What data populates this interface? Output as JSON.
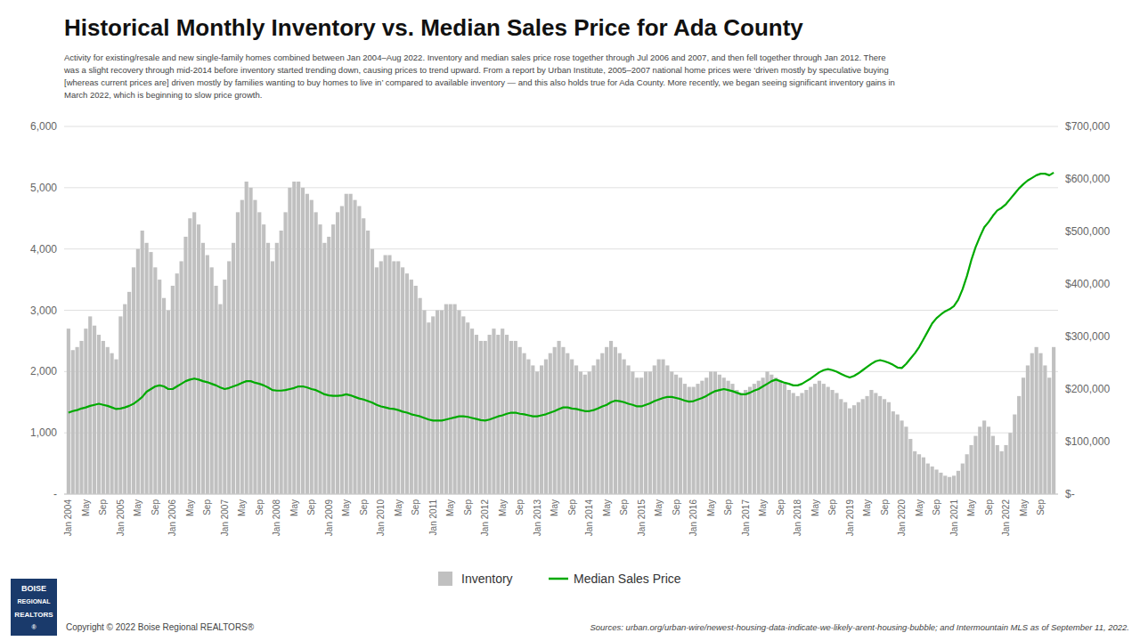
{
  "chart_data": {
    "type": "bar",
    "title": "Historical Monthly Inventory vs. Median Sales Price for Ada County",
    "subtitle": [
      "Activity for existing/resale and new single-family homes combined between Jan 2004–Aug 2022. Inventory and median sales price rose together through Jul 2006 and 2007, and then fell together through Jan 2012. There",
      "was a slight recovery through mid-2014 before inventory started trending down, causing prices to trend upward. From a report by Urban Institute, 2005–2007 national home prices were ‘driven mostly by speculative buying",
      "[whereas current prices are] driven mostly by families wanting to buy homes to live in’ compared to available inventory — and this also holds true for Ada County. More recently, we began seeing significant inventory gains in",
      "March 2022, which is beginning to slow price growth."
    ],
    "footer": [
      "Copyright © 2022 Boise Regional REALTORS®",
      "Sources: urban.org/urban-wire/newest-housing-data-indicate-we-likely-arent-housing-bubble; and Intermountain MLS as of September 11, 2022."
    ],
    "logo": [
      "BOISE",
      "REGIONAL",
      "REALTORS",
      "®"
    ],
    "background_color": "#ffffff",
    "categories": [
      "Jan 2004",
      null,
      null,
      null,
      "May",
      null,
      null,
      null,
      "Sep",
      null,
      null,
      null,
      "Jan 2005",
      null,
      null,
      null,
      "May",
      null,
      null,
      null,
      "Sep",
      null,
      null,
      null,
      "Jan 2006",
      null,
      null,
      null,
      "May",
      null,
      null,
      null,
      "Sep",
      null,
      null,
      null,
      "Jan 2007",
      null,
      null,
      null,
      "May",
      null,
      null,
      null,
      "Sep",
      null,
      null,
      null,
      "Jan 2008",
      null,
      null,
      null,
      "May",
      null,
      null,
      null,
      "Sep",
      null,
      null,
      null,
      "Jan 2009",
      null,
      null,
      null,
      "May",
      null,
      null,
      null,
      "Sep",
      null,
      null,
      null,
      "Jan 2010",
      null,
      null,
      null,
      "May",
      null,
      null,
      null,
      "Sep",
      null,
      null,
      null,
      "Jan 2011",
      null,
      null,
      null,
      "May",
      null,
      null,
      null,
      "Sep",
      null,
      null,
      null,
      "Jan 2012",
      null,
      null,
      null,
      "May",
      null,
      null,
      null,
      "Sep",
      null,
      null,
      null,
      "Jan 2013",
      null,
      null,
      null,
      "May",
      null,
      null,
      null,
      "Sep",
      null,
      null,
      null,
      "Jan 2014",
      null,
      null,
      null,
      "May",
      null,
      null,
      null,
      "Sep",
      null,
      null,
      null,
      "Jan 2015",
      null,
      null,
      null,
      "May",
      null,
      null,
      null,
      "Sep",
      null,
      null,
      null,
      "Jan 2016",
      null,
      null,
      null,
      "May",
      null,
      null,
      null,
      "Sep",
      null,
      null,
      null,
      "Jan 2017",
      null,
      null,
      null,
      "May",
      null,
      null,
      null,
      "Sep",
      null,
      null,
      null,
      "Jan 2018",
      null,
      null,
      null,
      "May",
      null,
      null,
      null,
      "Sep",
      null,
      null,
      null,
      "Jan 2019",
      null,
      null,
      null,
      "May",
      null,
      null,
      null,
      "Sep",
      null,
      null,
      null,
      "Jan 2020",
      null,
      null,
      null,
      "May",
      null,
      null,
      null,
      "Sep",
      null,
      null,
      null,
      "Jan 2021",
      null,
      null,
      null,
      "May",
      null,
      null,
      null,
      "Sep",
      null,
      null,
      null,
      "Jan 2022",
      null,
      null,
      null,
      "May",
      null,
      null,
      null,
      "Sep",
      null,
      null,
      null
    ],
    "series": [
      {
        "name": "Inventory",
        "type": "bar",
        "axis": "y",
        "color": "#c0c0c0",
        "values": [
          2700,
          2350,
          2400,
          2500,
          2700,
          2900,
          2750,
          2600,
          2500,
          2400,
          2300,
          2200,
          2900,
          3100,
          3300,
          3700,
          4000,
          4300,
          4100,
          3950,
          3700,
          3500,
          3200,
          3000,
          3400,
          3600,
          3800,
          4200,
          4500,
          4600,
          4400,
          4100,
          3900,
          3700,
          3400,
          3100,
          3500,
          3800,
          4100,
          4600,
          4800,
          5100,
          5000,
          4800,
          4600,
          4400,
          4100,
          3800,
          4100,
          4300,
          4600,
          5000,
          5100,
          5100,
          5000,
          4900,
          4800,
          4600,
          4400,
          4100,
          4200,
          4400,
          4600,
          4700,
          4900,
          4900,
          4800,
          4700,
          4500,
          4300,
          4000,
          3700,
          3800,
          3900,
          3900,
          3800,
          3800,
          3700,
          3600,
          3500,
          3400,
          3200,
          3000,
          2800,
          2900,
          3000,
          3000,
          3100,
          3100,
          3100,
          3000,
          2900,
          2800,
          2700,
          2600,
          2500,
          2500,
          2600,
          2700,
          2600,
          2700,
          2600,
          2500,
          2500,
          2400,
          2300,
          2200,
          2100,
          2000,
          2100,
          2200,
          2300,
          2400,
          2500,
          2400,
          2300,
          2200,
          2100,
          2000,
          1950,
          2000,
          2100,
          2200,
          2300,
          2400,
          2500,
          2400,
          2300,
          2200,
          2100,
          2000,
          1900,
          1900,
          2000,
          2000,
          2100,
          2200,
          2200,
          2100,
          2000,
          1950,
          1900,
          1800,
          1750,
          1750,
          1800,
          1850,
          1900,
          2000,
          2000,
          1950,
          1900,
          1850,
          1800,
          1700,
          1650,
          1700,
          1750,
          1800,
          1850,
          1900,
          2000,
          1950,
          1900,
          1850,
          1800,
          1700,
          1650,
          1600,
          1650,
          1700,
          1750,
          1800,
          1850,
          1800,
          1750,
          1700,
          1650,
          1550,
          1500,
          1400,
          1450,
          1500,
          1550,
          1600,
          1700,
          1650,
          1600,
          1550,
          1500,
          1350,
          1300,
          1200,
          1100,
          900,
          700,
          650,
          600,
          500,
          450,
          400,
          350,
          300,
          280,
          300,
          380,
          500,
          650,
          800,
          950,
          1100,
          1200,
          1100,
          950,
          800,
          700,
          800,
          1000,
          1300,
          1600,
          1900,
          2100,
          2300,
          2400,
          2300,
          2100,
          1900,
          2400
        ]
      },
      {
        "name": "Median Sales Price",
        "type": "line",
        "axis": "y2",
        "color": "#00aa00",
        "values": [
          155000,
          158000,
          160000,
          163000,
          165000,
          168000,
          170000,
          172000,
          170000,
          168000,
          165000,
          162000,
          163000,
          165000,
          168000,
          172000,
          178000,
          185000,
          195000,
          200000,
          205000,
          207000,
          205000,
          200000,
          200000,
          205000,
          210000,
          215000,
          218000,
          220000,
          218000,
          215000,
          213000,
          210000,
          207000,
          203000,
          200000,
          202000,
          205000,
          208000,
          212000,
          215000,
          215000,
          212000,
          210000,
          207000,
          203000,
          198000,
          197000,
          197000,
          198000,
          200000,
          202000,
          205000,
          205000,
          203000,
          200000,
          198000,
          194000,
          190000,
          188000,
          187000,
          187000,
          188000,
          190000,
          188000,
          185000,
          182000,
          180000,
          177000,
          174000,
          170000,
          167000,
          165000,
          163000,
          162000,
          160000,
          157000,
          155000,
          152000,
          150000,
          148000,
          145000,
          142000,
          140000,
          140000,
          140000,
          142000,
          144000,
          146000,
          148000,
          148000,
          147000,
          145000,
          143000,
          141000,
          140000,
          142000,
          145000,
          148000,
          150000,
          153000,
          155000,
          155000,
          153000,
          152000,
          150000,
          148000,
          148000,
          150000,
          152000,
          155000,
          158000,
          162000,
          165000,
          165000,
          163000,
          162000,
          160000,
          158000,
          158000,
          160000,
          163000,
          167000,
          170000,
          175000,
          178000,
          177000,
          175000,
          172000,
          170000,
          167000,
          167000,
          170000,
          173000,
          177000,
          180000,
          183000,
          185000,
          185000,
          183000,
          181000,
          178000,
          176000,
          177000,
          180000,
          183000,
          187000,
          192000,
          196000,
          198000,
          200000,
          198000,
          196000,
          193000,
          190000,
          190000,
          193000,
          197000,
          200000,
          205000,
          210000,
          215000,
          218000,
          215000,
          212000,
          210000,
          207000,
          207000,
          210000,
          215000,
          220000,
          226000,
          232000,
          236000,
          238000,
          236000,
          233000,
          229000,
          225000,
          222000,
          225000,
          230000,
          236000,
          242000,
          248000,
          253000,
          255000,
          253000,
          250000,
          246000,
          241000,
          240000,
          248000,
          258000,
          268000,
          280000,
          295000,
          310000,
          325000,
          335000,
          342000,
          348000,
          352000,
          358000,
          370000,
          390000,
          415000,
          445000,
          470000,
          490000,
          508000,
          518000,
          530000,
          540000,
          545000,
          552000,
          562000,
          572000,
          582000,
          590000,
          597000,
          602000,
          607000,
          610000,
          610000,
          607000,
          612000
        ]
      }
    ],
    "ylim": [
      0,
      6000
    ],
    "yticks": [
      {
        "value": 0,
        "label": "-"
      },
      {
        "value": 1000,
        "label": "1,000"
      },
      {
        "value": 2000,
        "label": "2,000"
      },
      {
        "value": 3000,
        "label": "3,000"
      },
      {
        "value": 4000,
        "label": "4,000"
      },
      {
        "value": 5000,
        "label": "5,000"
      },
      {
        "value": 6000,
        "label": "6,000"
      }
    ],
    "y2lim": [
      0,
      700000
    ],
    "y2ticks": [
      {
        "value": 0,
        "label": "$-"
      },
      {
        "value": 100000,
        "label": "$100,000"
      },
      {
        "value": 200000,
        "label": "$200,000"
      },
      {
        "value": 300000,
        "label": "$300,000"
      },
      {
        "value": 400000,
        "label": "$400,000"
      },
      {
        "value": 500000,
        "label": "$500,000"
      },
      {
        "value": 600000,
        "label": "$600,000"
      },
      {
        "value": 700000,
        "label": "$700,000"
      }
    ],
    "grid": true,
    "legend": "bottom"
  }
}
